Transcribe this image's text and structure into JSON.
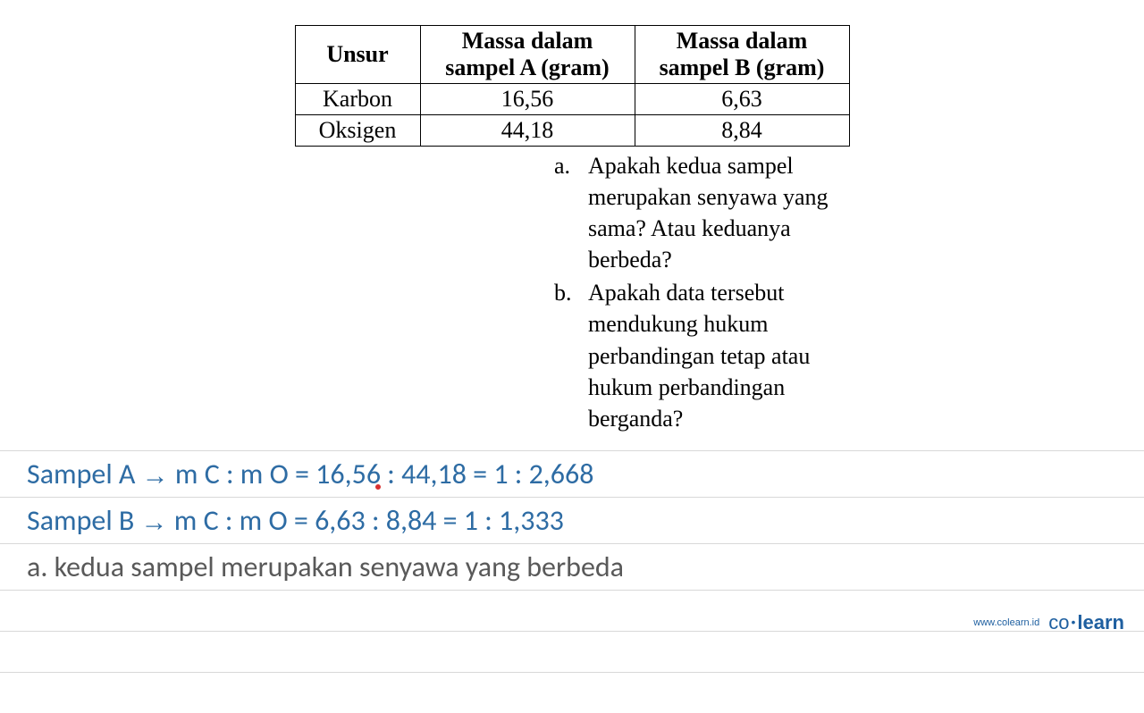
{
  "table": {
    "columns": [
      "Unsur",
      "Massa dalam sampel A (gram)",
      "Massa dalam sampel B (gram)"
    ],
    "header_lines": {
      "col0": [
        "Unsur"
      ],
      "col1_line1": "Massa dalam",
      "col1_line2": "sampel A (gram)",
      "col2_line1": "Massa dalam",
      "col2_line2": "sampel B (gram)"
    },
    "rows": [
      [
        "Karbon",
        "16,56",
        "6,63"
      ],
      [
        "Oksigen",
        "44,18",
        "8,84"
      ]
    ],
    "border_color": "#000000",
    "fontsize": 26,
    "header_fontweight": "bold"
  },
  "questions": [
    {
      "letter": "a.",
      "text": "Apakah kedua sampel merupakan senyawa yang sama? Atau keduanya berbeda?"
    },
    {
      "letter": "b.",
      "text": "Apakah data tersebut mendukung hukum perbandingan tetap atau hukum perbandingan berganda?"
    }
  ],
  "answers": [
    {
      "prefix": "Sampel A",
      "arrow": "→",
      "body": "m C : m O = 16,56 : 44,18 = 1 : 2,668",
      "color": "#2e6ca4"
    },
    {
      "prefix": "Sampel B",
      "arrow": "→",
      "body": "m C : m O = 6,63 : 8,84 = 1 : 1,333",
      "color": "#2e6ca4"
    }
  ],
  "conclusion": {
    "text": "a. kedua sampel merupakan senyawa yang berbeda",
    "color": "#595959"
  },
  "styling": {
    "answer_fontsize": 32,
    "answer_fontfamily": "Calibri",
    "rule_color": "#d8d8d8",
    "background_color": "#ffffff",
    "red_dot_color": "#d93030"
  },
  "footer": {
    "url": "www.colearn.id",
    "logo_part1": "co",
    "logo_part2": "learn",
    "color": "#1e5fa0"
  }
}
